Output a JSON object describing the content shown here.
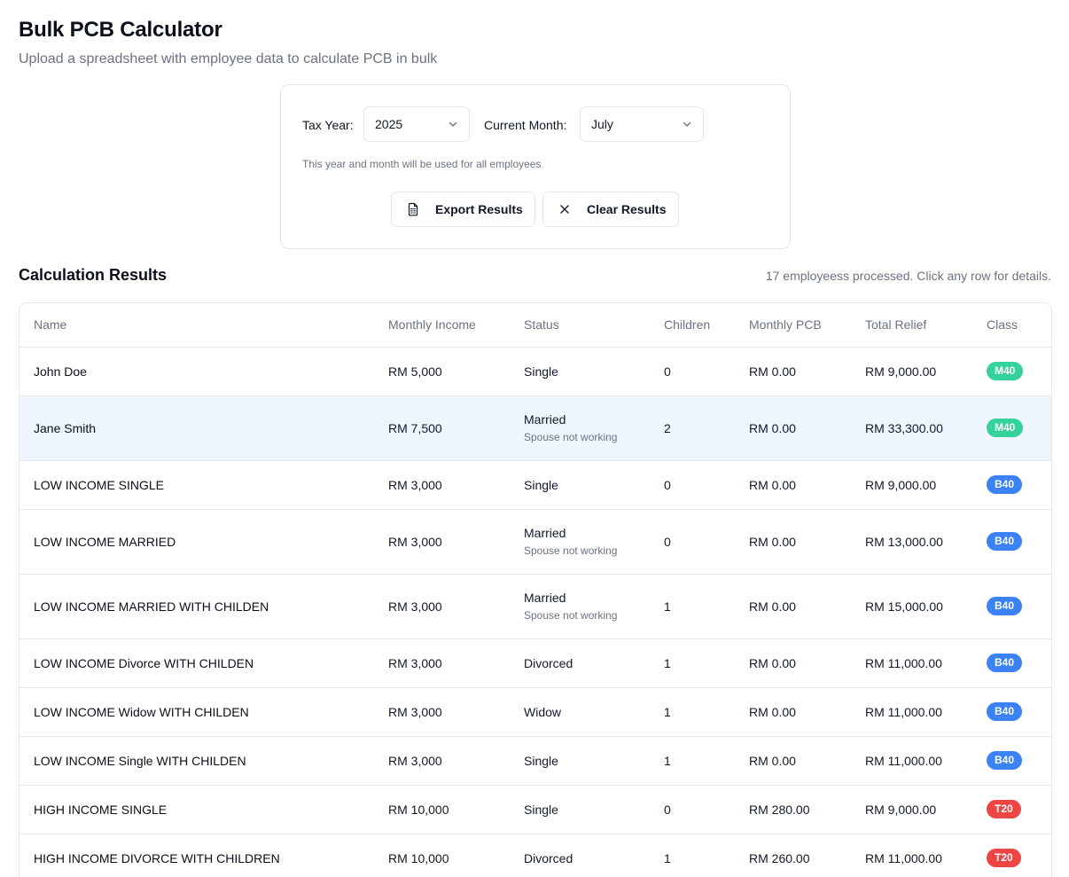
{
  "page": {
    "title": "Bulk PCB Calculator",
    "subtitle": "Upload a spreadsheet with employee data to calculate PCB in bulk"
  },
  "settings": {
    "tax_year_label": "Tax Year:",
    "tax_year_value": "2025",
    "month_label": "Current Month:",
    "month_value": "July",
    "hint": "This year and month will be used for all employees",
    "export_label": "Export Results",
    "clear_label": "Clear Results"
  },
  "results": {
    "title": "Calculation Results",
    "processed_note": "17 employeess processed. Click any row for details.",
    "columns": [
      "Name",
      "Monthly Income",
      "Status",
      "Children",
      "Monthly PCB",
      "Total Relief",
      "Class"
    ],
    "rows": [
      {
        "name": "John Doe",
        "income": "RM 5,000",
        "status": "Single",
        "status_sub": "",
        "children": "0",
        "pcb": "RM 0.00",
        "relief": "RM 9,000.00",
        "class": "M40"
      },
      {
        "name": "Jane Smith",
        "income": "RM 7,500",
        "status": "Married",
        "status_sub": "Spouse not working",
        "children": "2",
        "pcb": "RM 0.00",
        "relief": "RM 33,300.00",
        "class": "M40"
      },
      {
        "name": "LOW INCOME SINGLE",
        "income": "RM 3,000",
        "status": "Single",
        "status_sub": "",
        "children": "0",
        "pcb": "RM 0.00",
        "relief": "RM 9,000.00",
        "class": "B40"
      },
      {
        "name": "LOW INCOME MARRIED",
        "income": "RM 3,000",
        "status": "Married",
        "status_sub": "Spouse not working",
        "children": "0",
        "pcb": "RM 0.00",
        "relief": "RM 13,000.00",
        "class": "B40"
      },
      {
        "name": "LOW INCOME MARRIED WITH CHILDEN",
        "income": "RM 3,000",
        "status": "Married",
        "status_sub": "Spouse not working",
        "children": "1",
        "pcb": "RM 0.00",
        "relief": "RM 15,000.00",
        "class": "B40"
      },
      {
        "name": "LOW INCOME Divorce WITH CHILDEN",
        "income": "RM 3,000",
        "status": "Divorced",
        "status_sub": "",
        "children": "1",
        "pcb": "RM 0.00",
        "relief": "RM 11,000.00",
        "class": "B40"
      },
      {
        "name": "LOW INCOME Widow WITH CHILDEN",
        "income": "RM 3,000",
        "status": "Widow",
        "status_sub": "",
        "children": "1",
        "pcb": "RM 0.00",
        "relief": "RM 11,000.00",
        "class": "B40"
      },
      {
        "name": "LOW INCOME Single WITH CHILDEN",
        "income": "RM 3,000",
        "status": "Single",
        "status_sub": "",
        "children": "1",
        "pcb": "RM 0.00",
        "relief": "RM 11,000.00",
        "class": "B40"
      },
      {
        "name": "HIGH INCOME SINGLE",
        "income": "RM 10,000",
        "status": "Single",
        "status_sub": "",
        "children": "0",
        "pcb": "RM 280.00",
        "relief": "RM 9,000.00",
        "class": "T20"
      },
      {
        "name": "HIGH INCOME DIVORCE WITH CHILDREN",
        "income": "RM 10,000",
        "status": "Divorced",
        "status_sub": "",
        "children": "1",
        "pcb": "RM 260.00",
        "relief": "RM 11,000.00",
        "class": "T20"
      }
    ]
  },
  "class_colors": {
    "M40": "#34d399",
    "B40": "#3b82f6",
    "T20": "#ef4444"
  },
  "highlight_color": "#eff6ff",
  "icons": {
    "export": "file-spreadsheet-icon",
    "clear": "close-icon",
    "select": "chevron-down-icon"
  }
}
